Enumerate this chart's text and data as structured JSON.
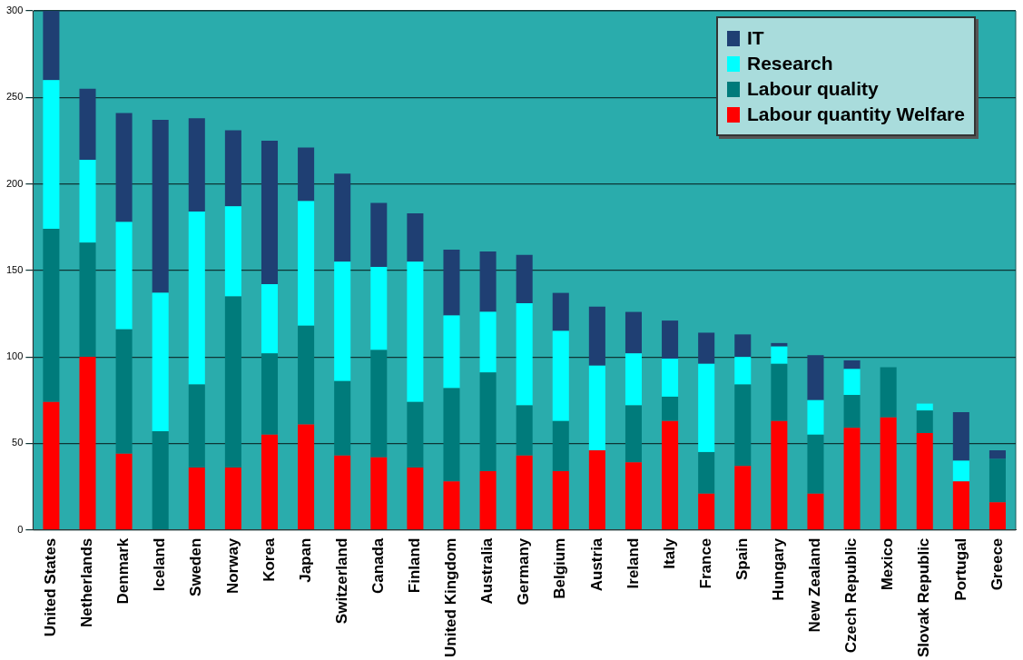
{
  "chart_data": {
    "type": "bar",
    "stacked": true,
    "categories": [
      "United States",
      "Netherlands",
      "Denmark",
      "Iceland",
      "Sweden",
      "Norway",
      "Korea",
      "Japan",
      "Switzerland",
      "Canada",
      "Finland",
      "United Kingdom",
      "Australia",
      "Germany",
      "Belgium",
      "Austria",
      "Ireland",
      "Italy",
      "France",
      "Spain",
      "Hungary",
      "New Zealand",
      "Czech Republic",
      "Mexico",
      "Slovak Republic",
      "Portugal",
      "Greece"
    ],
    "series": [
      {
        "name": "Labour quantity Welfare",
        "color": "#ff0000",
        "values": [
          74,
          100,
          44,
          0,
          36,
          36,
          55,
          61,
          43,
          42,
          36,
          28,
          34,
          43,
          34,
          46,
          39,
          63,
          21,
          37,
          63,
          21,
          59,
          65,
          56,
          28,
          16
        ]
      },
      {
        "name": "Labour quality",
        "color": "#007b7b",
        "values": [
          100,
          66,
          72,
          57,
          48,
          99,
          47,
          57,
          43,
          62,
          38,
          54,
          57,
          29,
          29,
          0,
          33,
          14,
          24,
          47,
          33,
          34,
          19,
          29,
          13,
          0,
          25
        ]
      },
      {
        "name": "Research",
        "color": "#00ffff",
        "values": [
          86,
          48,
          62,
          80,
          100,
          52,
          40,
          72,
          69,
          48,
          81,
          42,
          35,
          59,
          52,
          49,
          30,
          22,
          51,
          16,
          10,
          20,
          15,
          0,
          4,
          12,
          0
        ]
      },
      {
        "name": "IT",
        "color": "#1f3f73",
        "values": [
          40,
          41,
          63,
          100,
          54,
          44,
          83,
          31,
          51,
          37,
          28,
          38,
          35,
          28,
          22,
          34,
          24,
          22,
          18,
          13,
          2,
          26,
          5,
          0,
          0,
          28,
          5
        ]
      }
    ],
    "ylim": [
      0,
      300
    ],
    "yticks": [
      0,
      50,
      100,
      150,
      200,
      250,
      300
    ],
    "grid": "y",
    "legend": "top right"
  }
}
